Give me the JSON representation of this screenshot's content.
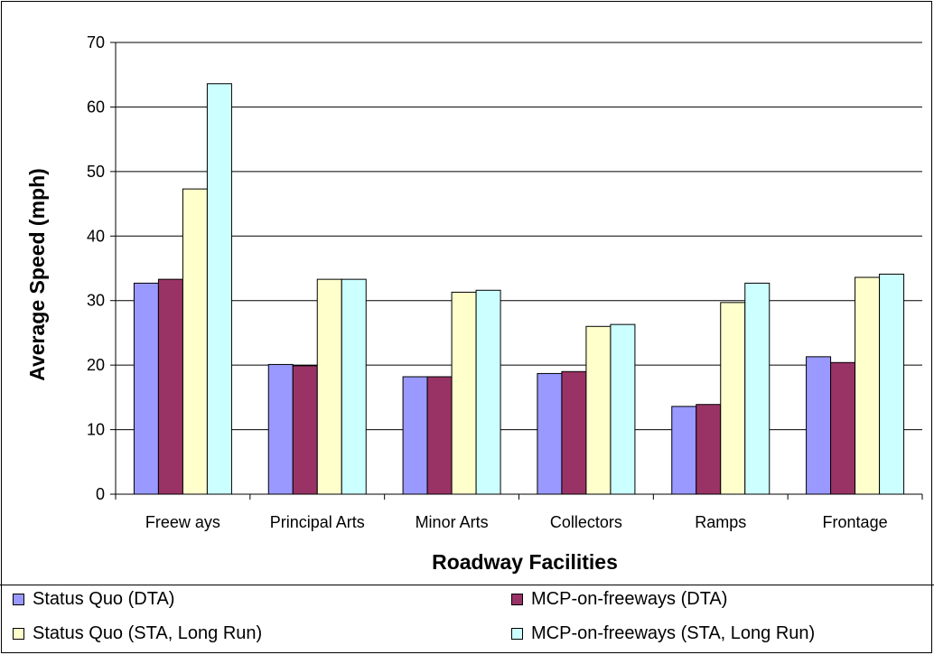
{
  "chart_data": {
    "type": "bar",
    "title": "",
    "xlabel": "Roadway Facilities",
    "ylabel": "Average Speed (mph)",
    "ylim": [
      0,
      70
    ],
    "yticks": [
      "0",
      "10",
      "20",
      "30",
      "40",
      "50",
      "60",
      "70"
    ],
    "grid": true,
    "legend_position": "bottom",
    "categories": [
      "Freew ays",
      "Principal Arts",
      "Minor Arts",
      "Collectors",
      "Ramps",
      "Frontage"
    ],
    "series": [
      {
        "name": "Status Quo (DTA)",
        "color": "#9999ff",
        "values": [
          32.7,
          20.1,
          18.2,
          18.7,
          13.6,
          21.3
        ]
      },
      {
        "name": "MCP-on-freeways (DTA)",
        "color": "#993366",
        "values": [
          33.3,
          19.9,
          18.2,
          19.0,
          13.9,
          20.4
        ]
      },
      {
        "name": "Status Quo (STA, Long Run)",
        "color": "#ffffcc",
        "values": [
          47.3,
          33.3,
          31.3,
          26.0,
          29.7,
          33.6
        ]
      },
      {
        "name": "MCP-on-freeways (STA, Long Run)",
        "color": "#ccffff",
        "values": [
          63.6,
          33.3,
          31.6,
          26.3,
          32.7,
          34.1
        ]
      }
    ]
  }
}
